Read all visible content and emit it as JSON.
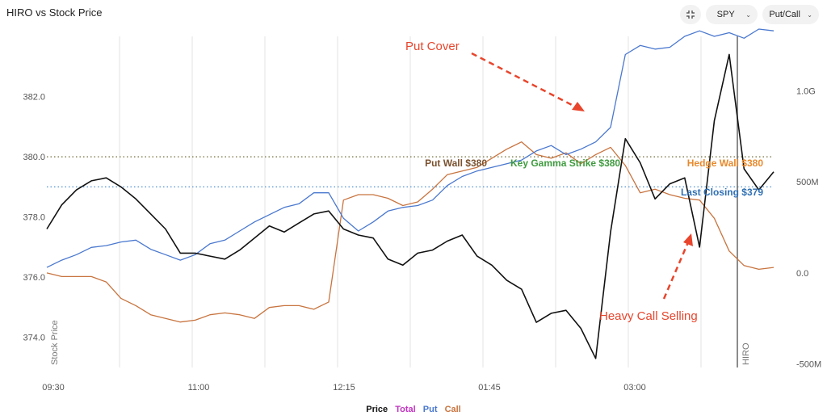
{
  "title": "HIRO vs Stock Price",
  "controls": {
    "compact_icon": "compress-arrows-icon",
    "symbol": "SPY",
    "view": "Put/Call"
  },
  "colors": {
    "price": "#111111",
    "put": "#4a78cf",
    "call": "#c8743f",
    "total": "#c233c2",
    "put_wall": "#7a5230",
    "gamma": "#3f9b3f",
    "hedge_wall": "#e8892b",
    "last_close": "#2f6fb3",
    "annotation": "#e8452c"
  },
  "legend": [
    "Price",
    "Total",
    "Put",
    "Call"
  ],
  "chart_data": {
    "type": "line",
    "x_ticks": [
      "09:30",
      "11:00",
      "12:15",
      "01:45",
      "03:00"
    ],
    "y_left_ticks": [
      "382.0",
      "380.0",
      "378.0",
      "376.0",
      "374.0"
    ],
    "y_left_range": [
      373.0,
      384.0
    ],
    "y_right_ticks": [
      "1.0G",
      "500M",
      "0.0",
      "-500M"
    ],
    "y_right_range": [
      -520,
      1300
    ],
    "y_left_label": "Stock Price",
    "vertical_marker_label": "HIRO",
    "levels": [
      {
        "label": "Put Wall $380",
        "value": 380.0,
        "color_key": "put_wall"
      },
      {
        "label": "Key Gamma Strike $380",
        "value": 380.0,
        "color_key": "gamma"
      },
      {
        "label": "Hedge Wall $380",
        "value": 380.0,
        "color_key": "hedge_wall"
      },
      {
        "label": "Last Closing $379",
        "value": 379.0,
        "color_key": "last_close"
      }
    ],
    "annotations": [
      "Put Cover",
      "Heavy Call Selling"
    ],
    "series": [
      {
        "name": "Price",
        "color_key": "price",
        "axis": "left",
        "values": [
          377.6,
          378.4,
          378.9,
          379.2,
          379.3,
          379.0,
          378.6,
          378.1,
          377.6,
          376.8,
          376.8,
          376.7,
          376.6,
          376.9,
          377.3,
          377.7,
          377.5,
          377.8,
          378.1,
          378.2,
          377.6,
          377.4,
          377.3,
          376.6,
          376.4,
          376.8,
          376.9,
          377.2,
          377.4,
          376.7,
          376.4,
          375.9,
          375.6,
          374.5,
          374.8,
          374.9,
          374.3,
          373.3,
          377.5,
          380.6,
          379.8,
          378.6,
          379.1,
          379.3,
          377.0,
          381.2,
          383.4,
          379.6,
          378.9,
          379.5
        ]
      },
      {
        "name": "Put",
        "color_key": "put",
        "axis": "right",
        "values": [
          30,
          70,
          100,
          140,
          150,
          170,
          180,
          130,
          100,
          70,
          100,
          160,
          180,
          230,
          280,
          320,
          360,
          380,
          440,
          440,
          300,
          230,
          280,
          340,
          360,
          370,
          400,
          480,
          530,
          560,
          580,
          600,
          620,
          670,
          700,
          650,
          680,
          720,
          800,
          1200,
          1250,
          1230,
          1240,
          1300,
          1330,
          1300,
          1320,
          1290,
          1340,
          1330
        ]
      },
      {
        "name": "Call",
        "color_key": "call",
        "axis": "right",
        "values": [
          0,
          -20,
          -20,
          -20,
          -50,
          -140,
          -180,
          -230,
          -250,
          -270,
          -260,
          -230,
          -220,
          -230,
          -250,
          -190,
          -180,
          -180,
          -200,
          -160,
          400,
          430,
          430,
          410,
          370,
          390,
          460,
          540,
          560,
          580,
          630,
          680,
          720,
          650,
          630,
          660,
          600,
          650,
          690,
          590,
          440,
          460,
          430,
          410,
          400,
          300,
          120,
          40,
          20,
          30
        ]
      }
    ]
  }
}
